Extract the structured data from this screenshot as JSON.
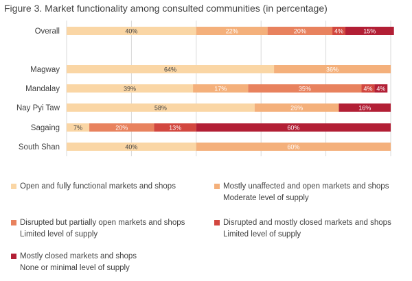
{
  "title": "Figure 3. Market functionality among consulted communities (in percentage)",
  "chart_data": {
    "type": "bar",
    "orientation": "horizontal",
    "stacked": true,
    "title": "Figure 3. Market functionality among consulted communities (in percentage)",
    "categories": [
      "Overall",
      "Magway",
      "Mandalay",
      "Nay Pyi Taw",
      "Sagaing",
      "South Shan"
    ],
    "xlim": [
      0,
      100
    ],
    "grid": true,
    "legend_position": "bottom",
    "series": [
      {
        "name": "Open and fully functional markets and shops",
        "color": "#fad6a5",
        "values": [
          40,
          64,
          39,
          58,
          7,
          40
        ],
        "labels": [
          "40%",
          "64%",
          "39%",
          "58%",
          "7%",
          "40%"
        ]
      },
      {
        "name": "Mostly unaffected and open markets and shops",
        "subtitle": "Moderate level of supply",
        "color": "#f4b07b",
        "values": [
          22,
          36,
          17,
          26,
          0,
          60
        ],
        "labels": [
          "22%",
          "36%",
          "17%",
          "26%",
          "",
          "60%"
        ]
      },
      {
        "name": "Disrupted but partially open markets and shops",
        "subtitle": "Limited level of supply",
        "color": "#e8825e",
        "values": [
          20,
          0,
          35,
          0,
          20,
          0
        ],
        "labels": [
          "20%",
          "",
          "35%",
          "",
          "20%",
          ""
        ]
      },
      {
        "name": "Disrupted and mostly closed markets and shops",
        "subtitle": "Limited level of supply",
        "color": "#d2473f",
        "values": [
          4,
          0,
          4,
          0,
          13,
          0
        ],
        "labels": [
          "4%",
          "",
          "4%",
          "",
          "13%",
          ""
        ]
      },
      {
        "name": "Mostly closed markets and shops",
        "subtitle": "None or minimal level of supply",
        "color": "#b21f35",
        "values": [
          15,
          0,
          4,
          16,
          60,
          0
        ],
        "labels": [
          "15%",
          "",
          "4%",
          "16%",
          "60%",
          ""
        ]
      }
    ]
  }
}
